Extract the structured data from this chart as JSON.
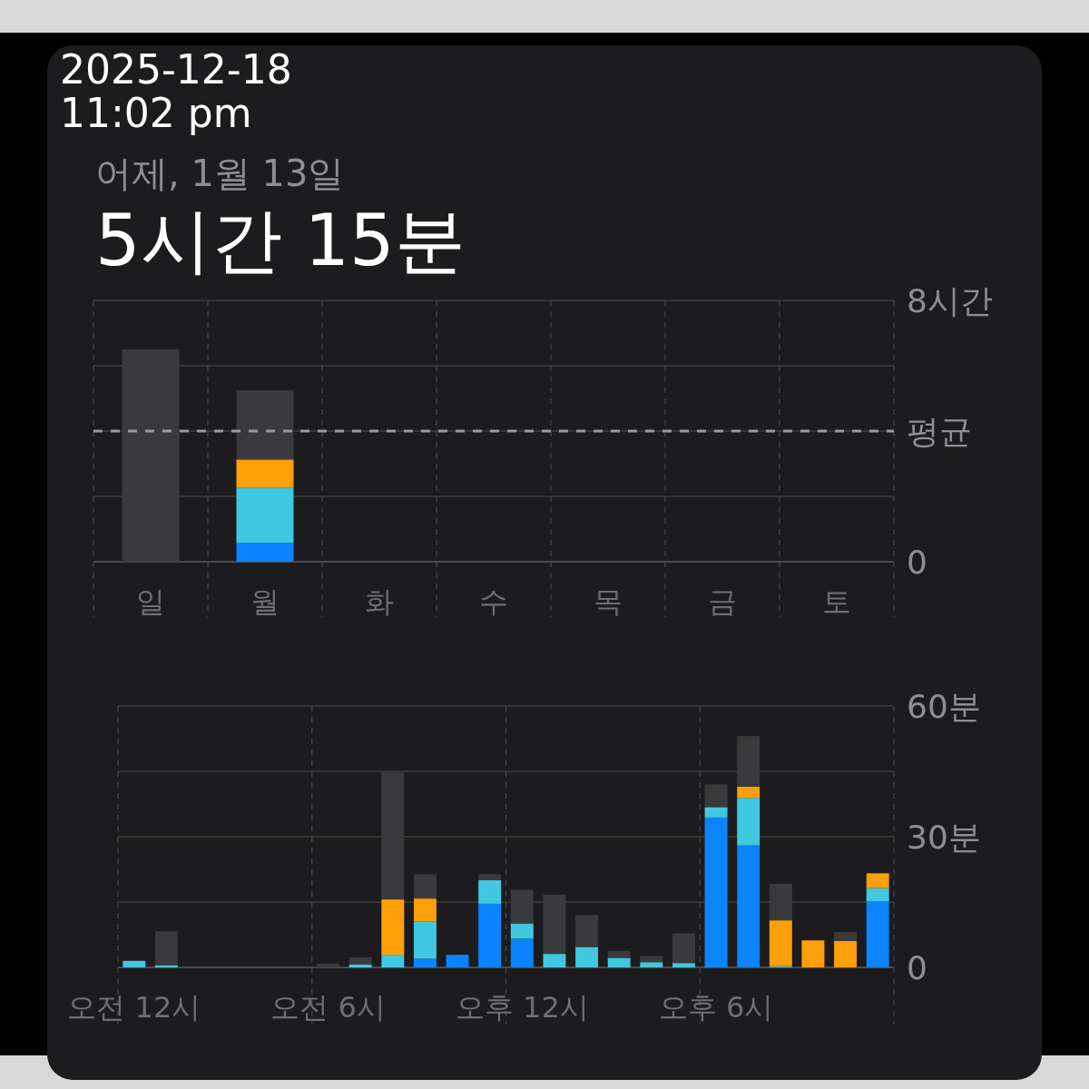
{
  "chart_data": [
    {
      "type": "bar",
      "title": "5시간 15분",
      "subtitle": "어제, 1월 13일",
      "annotations": [
        "2025-12-18",
        "11:02 pm"
      ],
      "categories": [
        "일",
        "월",
        "화",
        "수",
        "목",
        "금",
        "토"
      ],
      "stacked": true,
      "grid": true,
      "ylim": [
        0,
        8
      ],
      "yticks": [
        0,
        {
          "value": 2,
          "label": null
        },
        {
          "value": 4,
          "label": null
        },
        {
          "value": 6,
          "label": null
        },
        {
          "value": 8,
          "label": "8시간"
        }
      ],
      "ref_lines": [
        {
          "axis": "y",
          "value": 4,
          "label": "평균",
          "color": "#9a9a9e",
          "line_style": "dashed"
        }
      ],
      "series": [
        {
          "color": "#0a84ff",
          "values": [
            0,
            0.58,
            0,
            0,
            0,
            0,
            0
          ]
        },
        {
          "color": "#40c8e0",
          "values": [
            0,
            1.69,
            0,
            0,
            0,
            0,
            0
          ]
        },
        {
          "color": "#ff9f0a",
          "values": [
            0,
            0.86,
            0,
            0,
            0,
            0,
            0
          ]
        },
        {
          "color": "#3a3a3c",
          "values": [
            6.5,
            2.12,
            null,
            0,
            0,
            0,
            0
          ]
        }
      ]
    },
    {
      "type": "bar",
      "categories": [
        "오전 12시",
        null,
        null,
        null,
        null,
        null,
        "오전 6시",
        null,
        null,
        null,
        null,
        null,
        "오후 12시",
        null,
        null,
        null,
        null,
        null,
        "오후 6시",
        null,
        null,
        null,
        null,
        null
      ],
      "stacked": true,
      "grid": true,
      "ylim": [
        0,
        60
      ],
      "yticks": [
        0,
        {
          "value": 15,
          "label": null
        },
        {
          "value": 30,
          "label": "30분"
        },
        {
          "value": 45,
          "label": null
        },
        {
          "value": 60,
          "label": "60분"
        }
      ],
      "series": [
        {
          "color": "#0a84ff",
          "values": [
            0,
            0,
            0,
            0,
            0,
            0,
            0,
            0,
            0,
            2.0,
            2.9,
            14.6,
            6.6,
            0,
            0,
            0,
            0,
            0,
            34.4,
            28.0,
            0,
            0,
            0,
            15.2
          ]
        },
        {
          "color": "#40c8e0",
          "values": [
            1.5,
            0.5,
            0,
            0,
            0,
            0,
            0,
            0.7,
            2.9,
            8.5,
            0,
            5.4,
            3.5,
            3.1,
            4.7,
            2.2,
            1.2,
            1.0,
            2.4,
            10.9,
            0.3,
            0,
            0,
            3.0
          ]
        },
        {
          "color": "#ff9f0a",
          "values": [
            0,
            0,
            0,
            0,
            0,
            0,
            0,
            0,
            12.7,
            5.3,
            0,
            0,
            0,
            0,
            0,
            0,
            0,
            0,
            0,
            2.6,
            10.5,
            6.2,
            6.1,
            3.4
          ]
        },
        {
          "color": "#3a3a3c",
          "values": [
            0,
            7.8,
            0,
            0,
            0,
            null,
            0.9,
            1.6,
            29.2,
            5.6,
            0,
            1.4,
            7.7,
            13.6,
            7.3,
            1.6,
            1.4,
            6.8,
            5.2,
            11.6,
            8.4,
            0,
            2.0,
            0
          ]
        }
      ]
    }
  ]
}
